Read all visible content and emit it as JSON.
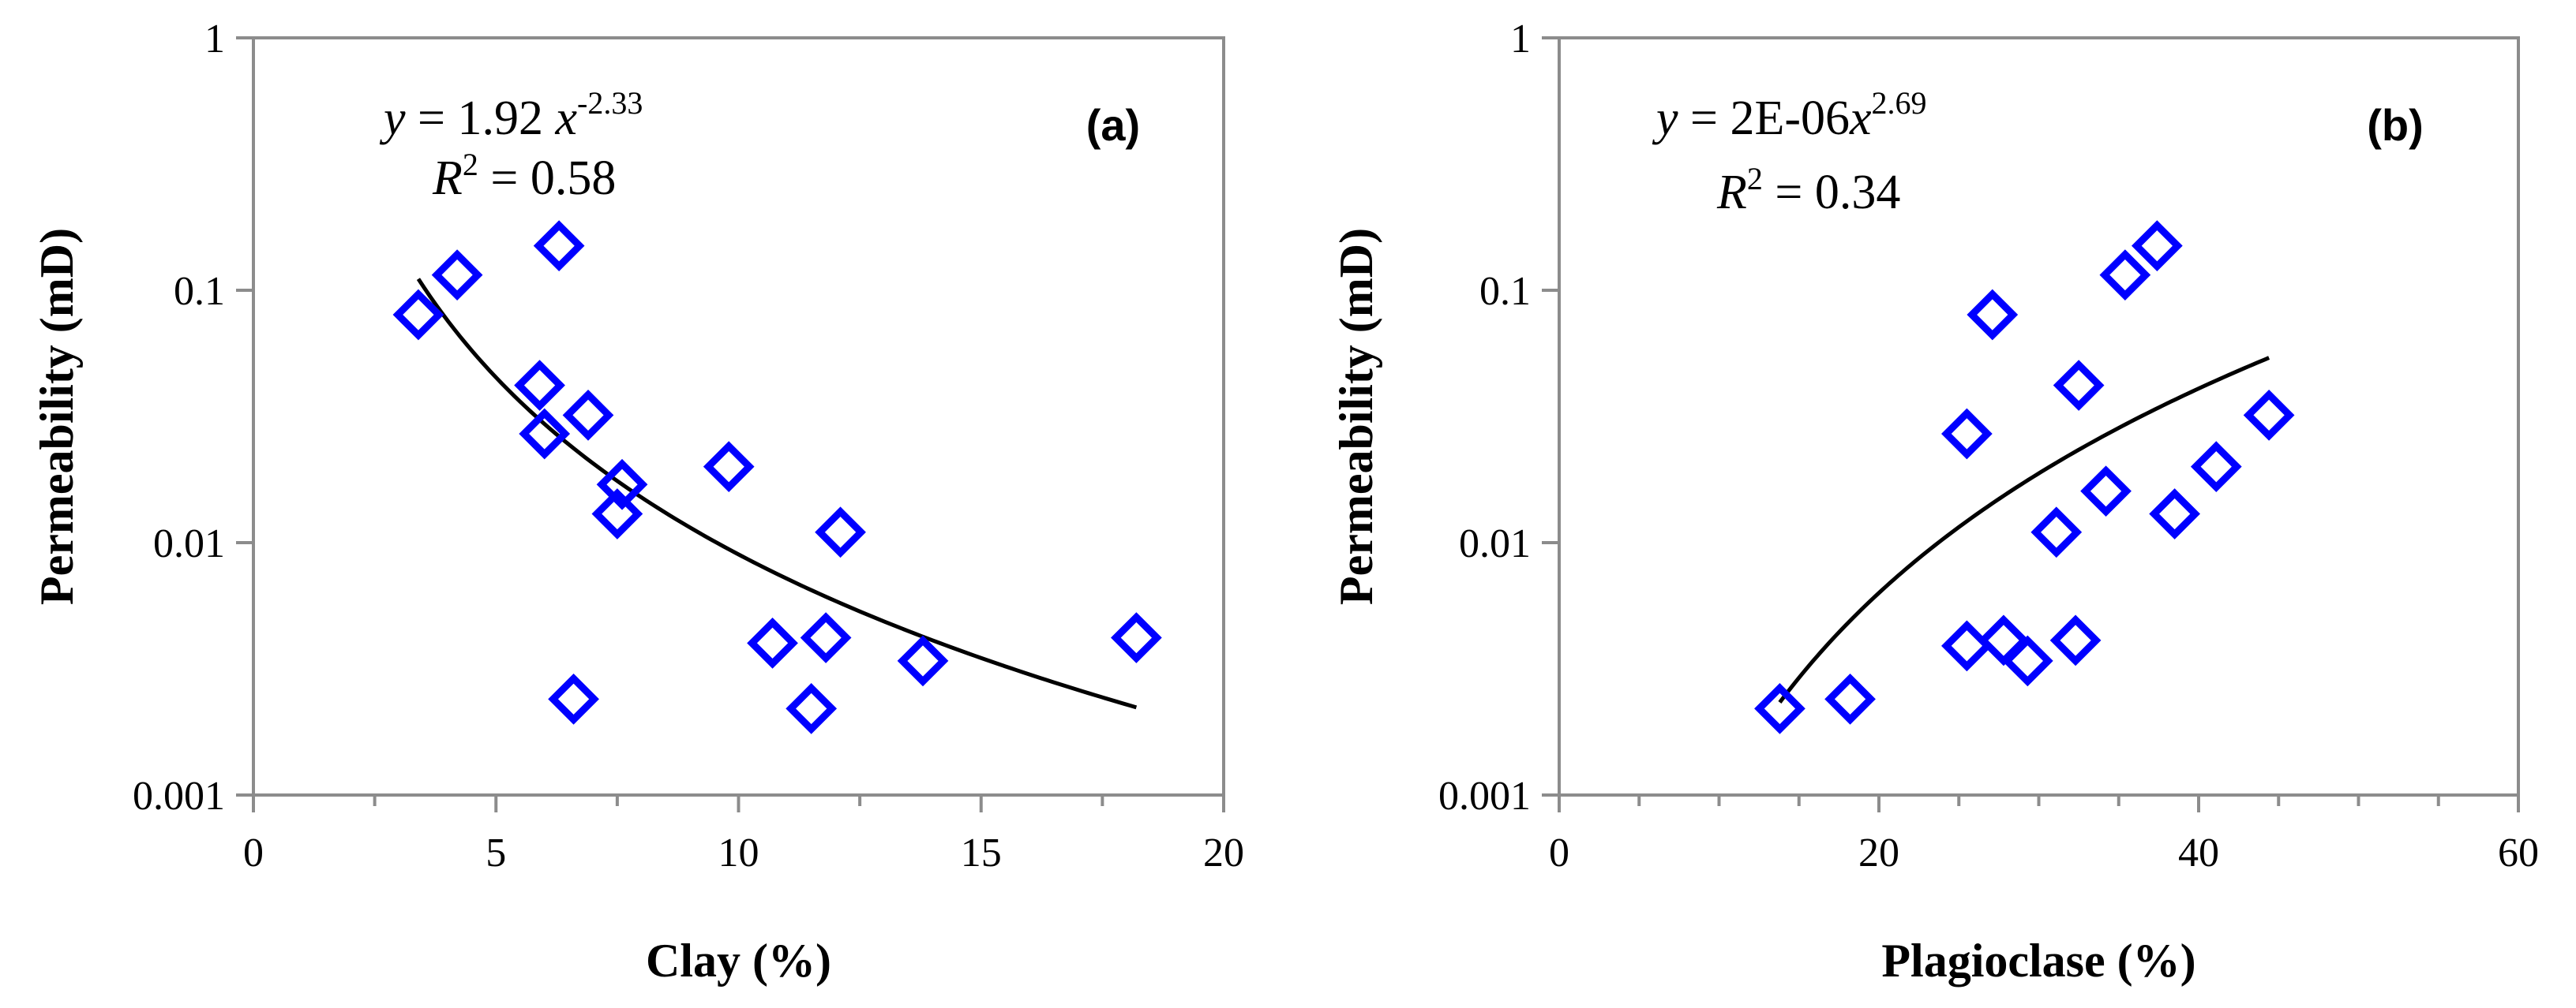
{
  "chart_data": [
    {
      "type": "scatter",
      "panel_label": "(a)",
      "xlabel": "Clay (%)",
      "ylabel": "Permeability (mD)",
      "xlim": [
        0,
        20
      ],
      "ylim": [
        0.001,
        1
      ],
      "yscale": "log",
      "x_ticks": [
        0,
        5,
        10,
        15,
        20
      ],
      "x_tick_labels": [
        "0",
        "5",
        "10",
        "15",
        "20"
      ],
      "y_ticks": [
        0.001,
        0.01,
        0.1,
        1
      ],
      "y_tick_labels": [
        "0.001",
        "0.01",
        "0.1",
        "1"
      ],
      "grid": false,
      "marker": "diamond",
      "marker_color": "#0000ff",
      "points": [
        {
          "x": 3.4,
          "y": 0.08
        },
        {
          "x": 4.2,
          "y": 0.115
        },
        {
          "x": 6.3,
          "y": 0.15
        },
        {
          "x": 5.9,
          "y": 0.042
        },
        {
          "x": 6.0,
          "y": 0.027
        },
        {
          "x": 6.9,
          "y": 0.032
        },
        {
          "x": 7.6,
          "y": 0.017
        },
        {
          "x": 7.5,
          "y": 0.013
        },
        {
          "x": 9.8,
          "y": 0.02
        },
        {
          "x": 12.1,
          "y": 0.011
        },
        {
          "x": 10.7,
          "y": 0.004
        },
        {
          "x": 11.8,
          "y": 0.0042
        },
        {
          "x": 13.8,
          "y": 0.0034
        },
        {
          "x": 6.6,
          "y": 0.0024
        },
        {
          "x": 11.5,
          "y": 0.0022
        },
        {
          "x": 18.2,
          "y": 0.0042
        }
      ],
      "trendline": {
        "kind": "power",
        "a": 1.92,
        "b": -2.33,
        "x_range": [
          3.4,
          18.2
        ]
      },
      "equation": {
        "y_label": "y",
        "equals": " = 1.92 ",
        "x_label": "x",
        "exponent": "-2.33"
      },
      "r2": {
        "label": "R",
        "sup": "2",
        "value": " = 0.58"
      }
    },
    {
      "type": "scatter",
      "panel_label": "(b)",
      "xlabel": "Plagioclase (%)",
      "ylabel": "Permeability (mD)",
      "xlim": [
        0,
        60
      ],
      "ylim": [
        0.001,
        1
      ],
      "yscale": "log",
      "x_ticks": [
        0,
        20,
        40,
        60
      ],
      "x_tick_labels": [
        "0",
        "20",
        "40",
        "60"
      ],
      "y_ticks": [
        0.001,
        0.01,
        0.1,
        1
      ],
      "y_tick_labels": [
        "0.001",
        "0.01",
        "0.1",
        "1"
      ],
      "grid": false,
      "marker": "diamond",
      "marker_color": "#0000ff",
      "points": [
        {
          "x": 13.8,
          "y": 0.0022
        },
        {
          "x": 18.2,
          "y": 0.0024
        },
        {
          "x": 25.5,
          "y": 0.0039
        },
        {
          "x": 27.8,
          "y": 0.0041
        },
        {
          "x": 29.3,
          "y": 0.0034
        },
        {
          "x": 32.3,
          "y": 0.0041
        },
        {
          "x": 25.5,
          "y": 0.027
        },
        {
          "x": 27.1,
          "y": 0.08
        },
        {
          "x": 31.1,
          "y": 0.011
        },
        {
          "x": 32.5,
          "y": 0.042
        },
        {
          "x": 34.2,
          "y": 0.016
        },
        {
          "x": 35.4,
          "y": 0.115
        },
        {
          "x": 37.4,
          "y": 0.15
        },
        {
          "x": 38.5,
          "y": 0.013
        },
        {
          "x": 41.1,
          "y": 0.02
        },
        {
          "x": 44.4,
          "y": 0.032
        }
      ],
      "trendline": {
        "kind": "power",
        "a": 2e-06,
        "b": 2.69,
        "x_range": [
          13.8,
          44.4
        ]
      },
      "equation": {
        "y_label": "y",
        "equals": " = 2E-06",
        "x_label": "x",
        "exponent": "2.69"
      },
      "r2": {
        "label": "R",
        "sup": "2",
        "value": " = 0.34"
      }
    }
  ]
}
